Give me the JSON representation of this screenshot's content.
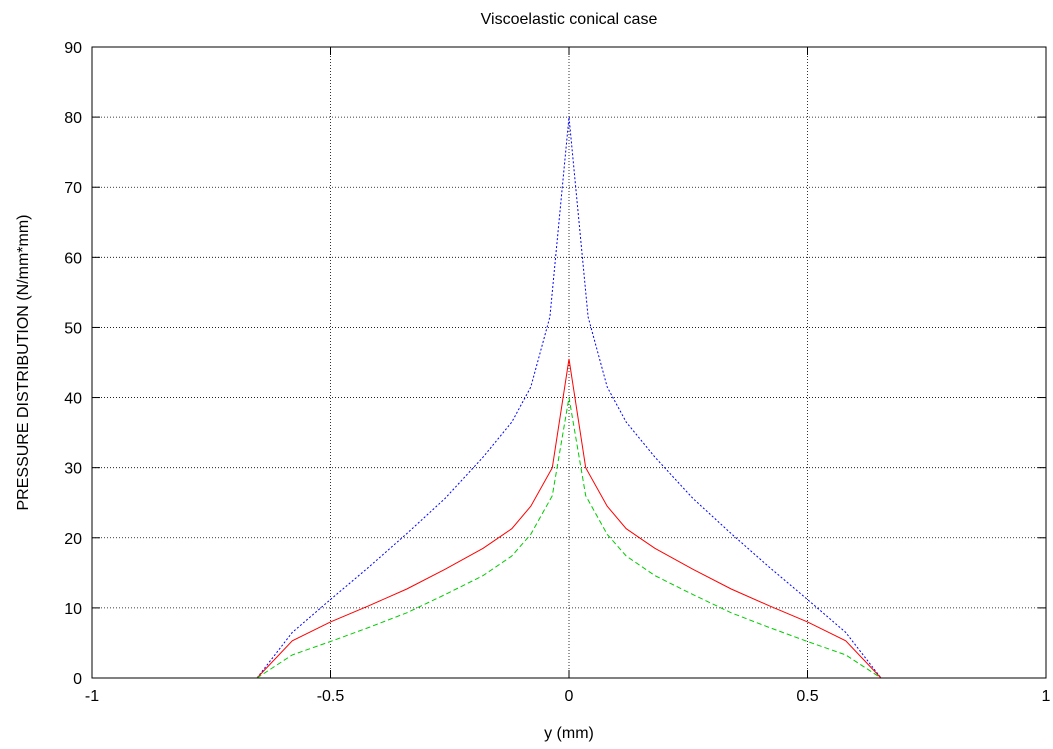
{
  "chart_data": {
    "type": "line",
    "title": "Viscoelastic conical case",
    "xlabel": "y (mm)",
    "ylabel": "PRESSURE DISTRIBUTION (N/mm*mm)",
    "xlim": [
      -1,
      1
    ],
    "ylim": [
      0,
      90
    ],
    "xticks": [
      "-1",
      "-0.5",
      "0",
      "0.5",
      "1"
    ],
    "yticks": [
      "0",
      "10",
      "20",
      "30",
      "40",
      "50",
      "60",
      "70",
      "80",
      "90"
    ],
    "grid": true,
    "series": [
      {
        "style": "dotted",
        "color": "#0000ff",
        "x": [
          -0.654,
          -0.58,
          -0.5,
          -0.42,
          -0.34,
          -0.26,
          -0.18,
          -0.12,
          -0.08,
          -0.04,
          0,
          0.04,
          0.08,
          0.12,
          0.18,
          0.26,
          0.34,
          0.42,
          0.5,
          0.58,
          0.654
        ],
        "y": [
          0,
          6.5,
          11.2,
          15.8,
          20.6,
          25.6,
          31.5,
          36.5,
          41.5,
          51.5,
          80,
          51.5,
          41.5,
          36.5,
          31.5,
          25.6,
          20.6,
          15.8,
          11.2,
          6.5,
          0
        ]
      },
      {
        "style": "solid",
        "color": "#ff0000",
        "x": [
          -0.654,
          -0.58,
          -0.5,
          -0.42,
          -0.34,
          -0.26,
          -0.18,
          -0.12,
          -0.08,
          -0.035,
          0,
          0.035,
          0.08,
          0.12,
          0.18,
          0.26,
          0.34,
          0.42,
          0.5,
          0.58,
          0.654
        ],
        "y": [
          0,
          5.3,
          8.0,
          10.3,
          12.7,
          15.5,
          18.5,
          21.3,
          24.5,
          30,
          45.5,
          30,
          24.5,
          21.3,
          18.5,
          15.5,
          12.7,
          10.3,
          8.0,
          5.3,
          0
        ]
      },
      {
        "style": "dashed",
        "color": "#00cc00",
        "x": [
          -0.654,
          -0.58,
          -0.5,
          -0.42,
          -0.34,
          -0.26,
          -0.18,
          -0.12,
          -0.08,
          -0.035,
          0,
          0.035,
          0.08,
          0.12,
          0.18,
          0.26,
          0.34,
          0.42,
          0.5,
          0.58,
          0.654
        ],
        "y": [
          0,
          3.3,
          5.2,
          7.2,
          9.3,
          11.9,
          14.6,
          17.4,
          20.5,
          26,
          40,
          26,
          20.5,
          17.4,
          14.6,
          11.9,
          9.3,
          7.2,
          5.2,
          3.3,
          0
        ]
      }
    ]
  }
}
